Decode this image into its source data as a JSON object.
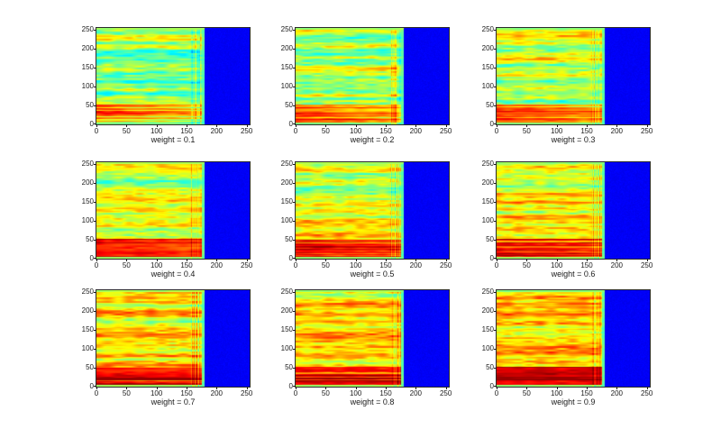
{
  "figure": {
    "background": "#ffffff",
    "label_color": "#1a1a1a"
  },
  "chart_data": {
    "type": "heatmap",
    "layout": {
      "rows": 3,
      "cols": 3
    },
    "colormap": "jet",
    "x_ticks": [
      "0",
      "50",
      "100",
      "150",
      "200",
      "250"
    ],
    "y_ticks": [
      "0",
      "50",
      "100",
      "150",
      "200",
      "250"
    ],
    "x_tick_values": [
      0,
      50,
      100,
      150,
      200,
      250
    ],
    "y_tick_values": [
      0,
      50,
      100,
      150,
      200,
      250
    ],
    "axis_max": 255,
    "subplots": [
      {
        "xlabel": "weight = 0.1",
        "weight": 0.1
      },
      {
        "xlabel": "weight = 0.2",
        "weight": 0.2
      },
      {
        "xlabel": "weight = 0.3",
        "weight": 0.3
      },
      {
        "xlabel": "weight = 0.4",
        "weight": 0.4
      },
      {
        "xlabel": "weight = 0.5",
        "weight": 0.5
      },
      {
        "xlabel": "weight = 0.6",
        "weight": 0.6
      },
      {
        "xlabel": "weight = 0.7",
        "weight": 0.7
      },
      {
        "xlabel": "weight = 0.8",
        "weight": 0.8
      },
      {
        "xlabel": "weight = 0.9",
        "weight": 0.9
      }
    ],
    "signal_region_x": [
      0,
      180
    ],
    "silence_region_x": [
      180,
      255
    ],
    "silence_region_color": "#0000eb",
    "strong_low_band_y": [
      0,
      55
    ],
    "content_description": "Nine spectrogram-style panels (jet colormap). Horizontal energy streaks over x=0..180 with a strong red band below y=55; uniform blue silence for x=180..255. Overall red/orange intensity grows with the weight value."
  }
}
